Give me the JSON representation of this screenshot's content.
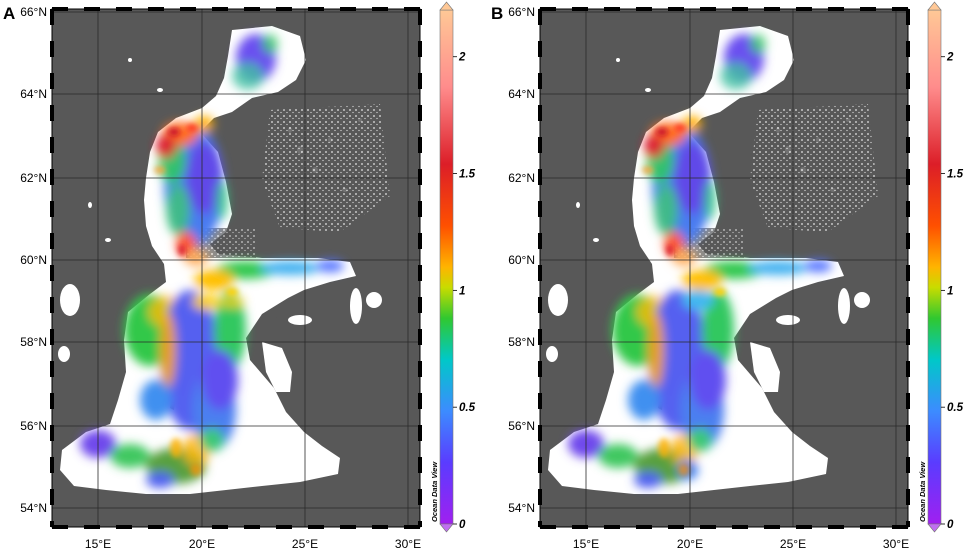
{
  "panels": [
    {
      "label": "A",
      "lat_ticks": [
        "66°N",
        "64°N",
        "62°N",
        "60°N",
        "58°N",
        "56°N",
        "54°N"
      ],
      "lon_ticks": [
        "15°E",
        "20°E",
        "25°E",
        "30°E"
      ],
      "colorbar": {
        "ticks": [
          "2",
          "1.5",
          "1",
          "0.5",
          "0"
        ],
        "vmin": 0,
        "vmax": 2.2,
        "watermark": "Ocean Data View"
      }
    },
    {
      "label": "B",
      "lat_ticks": [
        "66°N",
        "64°N",
        "62°N",
        "60°N",
        "58°N",
        "56°N",
        "54°N"
      ],
      "lon_ticks": [
        "15°E",
        "20°E",
        "25°E",
        "30°E"
      ],
      "colorbar": {
        "ticks": [
          "2",
          "1.5",
          "1",
          "0.5",
          "0"
        ],
        "vmin": 0,
        "vmax": 2.2,
        "watermark": "Ocean Data View"
      }
    }
  ],
  "colors": {
    "land": "#585858",
    "sea": "#ffffff",
    "scale": [
      "#a020f0",
      "#5a3cff",
      "#3c8cff",
      "#00c8c8",
      "#30c830",
      "#c8dc00",
      "#ffb400",
      "#ff5000",
      "#dc1e28",
      "#ff8c8c",
      "#ffc896"
    ]
  }
}
